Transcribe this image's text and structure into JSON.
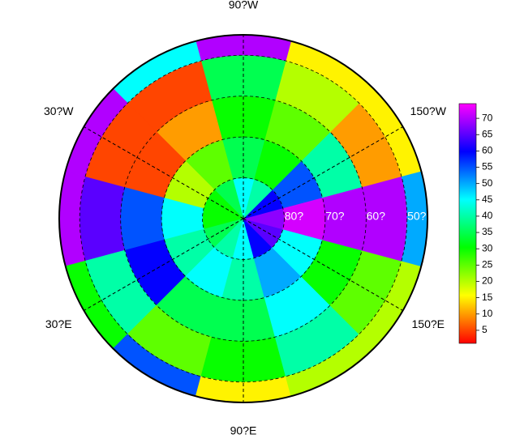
{
  "chart_data": {
    "type": "polar-grid",
    "lon_labels": [
      {
        "value": -90,
        "label": "90?W"
      },
      {
        "value": -30,
        "label": "30?W"
      },
      {
        "value": -150,
        "label": "150?W"
      },
      {
        "value": 30,
        "label": "30?E"
      },
      {
        "value": 150,
        "label": "150?E"
      },
      {
        "value": 90,
        "label": "90?E"
      }
    ],
    "lat_labels": [
      {
        "value": 80,
        "label": "80?"
      },
      {
        "value": 70,
        "label": "70?"
      },
      {
        "value": 60,
        "label": "60?"
      },
      {
        "value": 50,
        "label": "50?"
      }
    ],
    "lat_edges": [
      90,
      80,
      70,
      60,
      50,
      45
    ],
    "lon_centers": [
      0,
      30,
      60,
      90,
      120,
      150,
      180,
      -150,
      -120,
      -90,
      -60,
      -30
    ],
    "values": [
      [
        30,
        45,
        55,
        65,
        70
      ],
      [
        35,
        40,
        60,
        40,
        30
      ],
      [
        40,
        45,
        35,
        25,
        55
      ],
      [
        45,
        40,
        35,
        30,
        15
      ],
      [
        60,
        50,
        45,
        40,
        20
      ],
      [
        65,
        45,
        30,
        25,
        20
      ],
      [
        68,
        72,
        70,
        70,
        50
      ],
      [
        60,
        55,
        40,
        10,
        15
      ],
      [
        40,
        30,
        25,
        20,
        15
      ],
      [
        45,
        35,
        30,
        35,
        70
      ],
      [
        35,
        25,
        10,
        5,
        45
      ],
      [
        30,
        20,
        5,
        5,
        70
      ]
    ],
    "colormap": [
      "#ff0000",
      "#ffff00",
      "#00ff00",
      "#00ffff",
      "#0000ff",
      "#ff00ff"
    ],
    "clim": [
      1,
      74.5
    ],
    "cticks": [
      5,
      10,
      15,
      20,
      25,
      30,
      35,
      40,
      45,
      50,
      55,
      60,
      65,
      70
    ]
  }
}
